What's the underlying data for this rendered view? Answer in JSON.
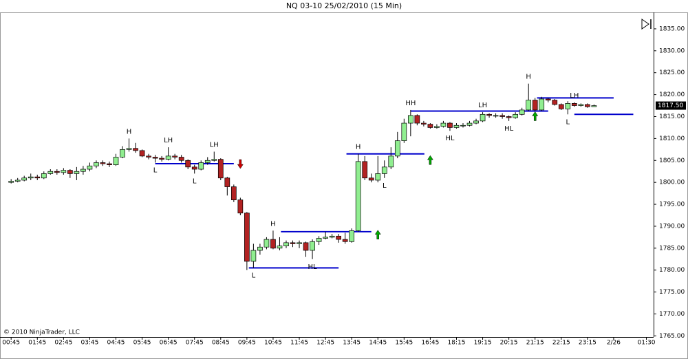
{
  "chart_data": {
    "type": "candlestick",
    "title": "NQ 03-10  25/02/2010 (15 Min)",
    "copyright": "© 2010 NinjaTrader, LLC",
    "up_color": "#90ee90",
    "down_color": "#b22222",
    "level_color": "#0000cc",
    "xlim": [
      -1.7,
      98.1
    ],
    "xticks": [
      {
        "value": 0,
        "label": "00:45"
      },
      {
        "value": 4,
        "label": "01:45"
      },
      {
        "value": 8,
        "label": "02:45"
      },
      {
        "value": 12,
        "label": "03:45"
      },
      {
        "value": 16,
        "label": "04:45"
      },
      {
        "value": 20,
        "label": "05:45"
      },
      {
        "value": 24,
        "label": "06:45"
      },
      {
        "value": 28,
        "label": "07:45"
      },
      {
        "value": 32,
        "label": "08:45"
      },
      {
        "value": 36,
        "label": "09:45"
      },
      {
        "value": 40,
        "label": "10:45"
      },
      {
        "value": 44,
        "label": "11:45"
      },
      {
        "value": 48,
        "label": "12:45"
      },
      {
        "value": 52,
        "label": "13:45"
      },
      {
        "value": 56,
        "label": "14:45"
      },
      {
        "value": 60,
        "label": "15:45"
      },
      {
        "value": 64,
        "label": "16:45"
      },
      {
        "value": 68,
        "label": "18:15"
      },
      {
        "value": 72,
        "label": "19:15"
      },
      {
        "value": 76,
        "label": "20:15"
      },
      {
        "value": 80,
        "label": "21:15"
      },
      {
        "value": 84,
        "label": "22:15"
      },
      {
        "value": 88,
        "label": "23:15"
      },
      {
        "value": 92,
        "label": "2/26"
      },
      {
        "value": 97,
        "label": "01:30"
      }
    ],
    "ylim": [
      1764.75,
      1838.75
    ],
    "yticks": [
      {
        "value": 1765,
        "label": "1765.00"
      },
      {
        "value": 1770,
        "label": "1770.00"
      },
      {
        "value": 1775,
        "label": "1775.00"
      },
      {
        "value": 1780,
        "label": "1780.00"
      },
      {
        "value": 1785,
        "label": "1785.00"
      },
      {
        "value": 1790,
        "label": "1790.00"
      },
      {
        "value": 1795,
        "label": "1795.00"
      },
      {
        "value": 1800,
        "label": "1800.00"
      },
      {
        "value": 1805,
        "label": "1805.00"
      },
      {
        "value": 1810,
        "label": "1810.00"
      },
      {
        "value": 1815,
        "label": "1815.00"
      },
      {
        "value": 1820,
        "label": "1820.00"
      },
      {
        "value": 1825,
        "label": "1825.00"
      },
      {
        "value": 1830,
        "label": "1830.00"
      },
      {
        "value": 1835,
        "label": "1835.00"
      }
    ],
    "last_price": {
      "value": 1817.5,
      "label": "1817.50"
    },
    "open": [
      1800,
      1800.25,
      1800.5,
      1801,
      1801.25,
      1801,
      1802,
      1802.5,
      1802.25,
      1802.75,
      1802,
      1802.5,
      1803,
      1803.75,
      1804.5,
      1804.25,
      1804,
      1805.75,
      1807.5,
      1807.75,
      1807.25,
      1806,
      1805.75,
      1805.5,
      1805.25,
      1806,
      1805.75,
      1805,
      1803.5,
      1803,
      1804.5,
      1805,
      1805.25,
      1801,
      1799,
      1796,
      1793,
      1782,
      1784.5,
      1785.25,
      1787,
      1785,
      1785.5,
      1786.25,
      1786,
      1786.25,
      1784.5,
      1786.5,
      1787.25,
      1787.5,
      1787.75,
      1787,
      1786.5,
      1789,
      1804.75,
      1801,
      1800.5,
      1802,
      1803.5,
      1806,
      1809.5,
      1813.5,
      1815.25,
      1813.5,
      1813.25,
      1812.5,
      1812.75,
      1813.5,
      1812.5,
      1813,
      1813,
      1813.5,
      1814,
      1815.5,
      1815.25,
      1815.25,
      1815,
      1814.75,
      1815.5,
      1816.5,
      1818.75,
      1816.5,
      1819,
      1818.75,
      1817.75,
      1816.75,
      1818,
      1817.5,
      1817.75,
      1817.25
    ],
    "high": [
      1800.75,
      1801,
      1801.5,
      1802,
      1801.75,
      1802.5,
      1803,
      1803,
      1803.25,
      1803,
      1803.5,
      1803.75,
      1804.5,
      1805,
      1805,
      1804.75,
      1806.5,
      1808.25,
      1810,
      1809,
      1807.5,
      1806.5,
      1806.25,
      1806,
      1808,
      1806.5,
      1806.25,
      1805.25,
      1804,
      1805,
      1805.75,
      1807,
      1805.5,
      1801.25,
      1799.5,
      1796.5,
      1793.25,
      1786,
      1786,
      1787.5,
      1789,
      1787.5,
      1786.75,
      1786.75,
      1786.75,
      1786.5,
      1787,
      1787.75,
      1788.75,
      1788.25,
      1788.25,
      1788.5,
      1789.5,
      1806.5,
      1806,
      1802,
      1806,
      1805,
      1808,
      1811.5,
      1814.5,
      1816.5,
      1815.5,
      1814,
      1813.5,
      1813.25,
      1814,
      1813.75,
      1813.5,
      1813.5,
      1814,
      1814.5,
      1816,
      1815.75,
      1815.75,
      1815.75,
      1815.25,
      1816,
      1817,
      1822.5,
      1819.25,
      1819.5,
      1819.25,
      1819,
      1818,
      1818.5,
      1818.25,
      1818,
      1818,
      1817.75
    ],
    "low": [
      1799.75,
      1800,
      1800.25,
      1800.5,
      1800.5,
      1800.75,
      1801.75,
      1801.75,
      1801.75,
      1801,
      1800.5,
      1801.75,
      1802.5,
      1803.25,
      1803.75,
      1803.5,
      1803.75,
      1805.5,
      1807,
      1806.75,
      1805.75,
      1805.25,
      1804.5,
      1804.75,
      1805,
      1805.25,
      1804.5,
      1803,
      1802,
      1802.75,
      1804,
      1804.75,
      1800.5,
      1797,
      1795.5,
      1792.5,
      1780,
      1780.5,
      1783.5,
      1784.75,
      1784.75,
      1784.5,
      1785,
      1785.25,
      1785,
      1783,
      1782.5,
      1785.75,
      1787,
      1787.25,
      1786.25,
      1786,
      1786.25,
      1788.75,
      1800.5,
      1800,
      1800,
      1801,
      1803,
      1805.5,
      1809,
      1810.5,
      1813,
      1812.75,
      1812.25,
      1812.25,
      1812.5,
      1811.75,
      1812.25,
      1812.5,
      1812.75,
      1813.25,
      1813.75,
      1814.75,
      1814.75,
      1814.5,
      1814,
      1814.5,
      1815.25,
      1816.25,
      1816.25,
      1816.25,
      1818.25,
      1817.5,
      1816.5,
      1815.5,
      1817.25,
      1817.25,
      1817,
      1817.25
    ],
    "close": [
      1800.25,
      1800.5,
      1801,
      1801.25,
      1801,
      1802,
      1802.5,
      1802.25,
      1802.75,
      1802,
      1802.5,
      1803,
      1803.75,
      1804.5,
      1804.25,
      1804,
      1805.75,
      1807.5,
      1807.75,
      1807.25,
      1806,
      1805.75,
      1805.5,
      1805.25,
      1806,
      1805.75,
      1805,
      1803.5,
      1803,
      1804.5,
      1805,
      1805.25,
      1801,
      1799,
      1796,
      1793,
      1782,
      1784.5,
      1785.25,
      1787,
      1785,
      1785.5,
      1786.25,
      1786,
      1786.25,
      1784.5,
      1786.5,
      1787.25,
      1787.5,
      1787.75,
      1787,
      1786.5,
      1789,
      1804.75,
      1801,
      1800.5,
      1802,
      1803.5,
      1806,
      1809.5,
      1813.5,
      1815.25,
      1813.5,
      1813.25,
      1812.5,
      1812.75,
      1813.5,
      1812.5,
      1813,
      1813,
      1813.5,
      1814,
      1815.5,
      1815.25,
      1815.25,
      1815,
      1814.75,
      1815.5,
      1816.5,
      1818.75,
      1816.5,
      1819,
      1818.75,
      1817.75,
      1816.75,
      1818,
      1817.5,
      1817.75,
      1817.25,
      1817.5
    ],
    "levels": [
      {
        "value": 1804.25,
        "start": 22,
        "end": 34
      },
      {
        "value": 1780.5,
        "start": 36.3,
        "end": 50
      },
      {
        "value": 1788.75,
        "start": 41.2,
        "end": 55
      },
      {
        "value": 1806.5,
        "start": 51.2,
        "end": 63.1
      },
      {
        "value": 1816.25,
        "start": 61,
        "end": 82
      },
      {
        "value": 1819.25,
        "start": 80.3,
        "end": 92
      },
      {
        "value": 1815.5,
        "start": 86,
        "end": 95
      }
    ],
    "signals": [
      {
        "direction": "down",
        "index": 35,
        "value": 1804.25,
        "color": "#cc0000"
      },
      {
        "direction": "up",
        "index": 56,
        "value": 1788,
        "color": "#00aa00"
      },
      {
        "direction": "up",
        "index": 64,
        "value": 1805,
        "color": "#00aa00"
      },
      {
        "direction": "up",
        "index": 80,
        "value": 1815,
        "color": "#00aa00"
      }
    ],
    "annotations": [
      {
        "text": "H",
        "index": 18,
        "position": "above"
      },
      {
        "text": "L",
        "index": 22,
        "position": "below"
      },
      {
        "text": "LH",
        "index": 24,
        "position": "above"
      },
      {
        "text": "L",
        "index": 28,
        "position": "below"
      },
      {
        "text": "LH",
        "index": 31,
        "position": "above"
      },
      {
        "text": "L",
        "index": 37,
        "position": "below"
      },
      {
        "text": "H",
        "index": 40,
        "position": "above"
      },
      {
        "text": "HL",
        "index": 46,
        "position": "below"
      },
      {
        "text": "H",
        "index": 53,
        "position": "above"
      },
      {
        "text": "L",
        "index": 57,
        "position": "below"
      },
      {
        "text": "HH",
        "index": 61,
        "position": "above"
      },
      {
        "text": "HL",
        "index": 67,
        "position": "below"
      },
      {
        "text": "LH",
        "index": 72,
        "position": "above"
      },
      {
        "text": "HL",
        "index": 76,
        "position": "below"
      },
      {
        "text": "H",
        "index": 79,
        "position": "above"
      },
      {
        "text": "LH",
        "index": 86,
        "position": "above"
      },
      {
        "text": "L",
        "index": 85,
        "position": "below"
      }
    ]
  }
}
